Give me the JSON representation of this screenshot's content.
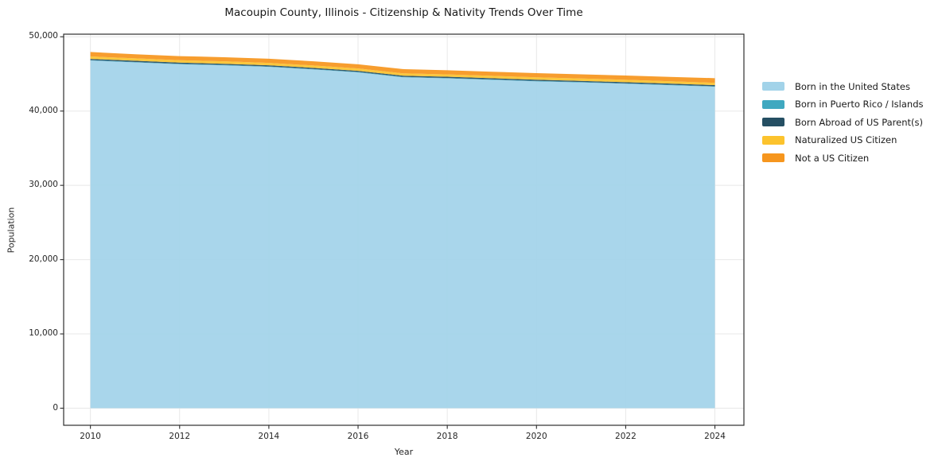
{
  "title": "Macoupin County, Illinois - Citizenship & Nativity Trends Over Time",
  "chart_data": {
    "type": "area",
    "stacked": true,
    "title": "Macoupin County, Illinois - Citizenship & Nativity Trends Over Time",
    "xlabel": "Year",
    "ylabel": "Population",
    "x": [
      2010,
      2011,
      2012,
      2013,
      2014,
      2015,
      2016,
      2017,
      2018,
      2019,
      2020,
      2021,
      2022,
      2023,
      2024
    ],
    "series": [
      {
        "name": "Born in the United States",
        "color": "#a2d3e9",
        "values": [
          46800,
          46550,
          46300,
          46150,
          45950,
          45600,
          45200,
          44550,
          44400,
          44200,
          44000,
          43850,
          43680,
          43480,
          43280
        ]
      },
      {
        "name": "Born in Puerto Rico / Islands",
        "color": "#3fa8c0",
        "values": [
          60,
          60,
          65,
          60,
          55,
          60,
          65,
          60,
          55,
          60,
          65,
          60,
          55,
          60,
          60
        ]
      },
      {
        "name": "Born Abroad of US Parent(s)",
        "color": "#254f63",
        "values": [
          160,
          165,
          160,
          155,
          160,
          155,
          150,
          160,
          165,
          160,
          155,
          150,
          155,
          160,
          155
        ]
      },
      {
        "name": "Naturalized US Citizen",
        "color": "#fcc32d",
        "values": [
          330,
          325,
          320,
          330,
          325,
          315,
          320,
          310,
          315,
          320,
          325,
          330,
          320,
          315,
          310
        ]
      },
      {
        "name": "Not a US Citizen",
        "color": "#f6961e",
        "values": [
          600,
          550,
          555,
          555,
          560,
          570,
          565,
          570,
          565,
          560,
          555,
          560,
          570,
          585,
          625
        ]
      }
    ],
    "totals": [
      47950,
      47650,
      47400,
      47250,
      47050,
      46700,
      46300,
      45650,
      45500,
      45300,
      45100,
      44950,
      44780,
      44600,
      44430
    ],
    "x_ticks": [
      2010,
      2012,
      2014,
      2016,
      2018,
      2020,
      2022,
      2024
    ],
    "y_ticks": [
      0,
      10000,
      20000,
      30000,
      40000,
      50000
    ],
    "y_tick_labels": [
      "0",
      "10,000",
      "20,000",
      "30,000",
      "40,000",
      "50,000"
    ],
    "xlim": [
      2009.4,
      2024.65
    ],
    "ylim": [
      -2300,
      50350
    ],
    "grid": true,
    "grid_color": "#e8e8e8",
    "frame_color": "#2e2e2e",
    "tick_color": "#2e2e2e",
    "legend_position": "right-outside"
  }
}
